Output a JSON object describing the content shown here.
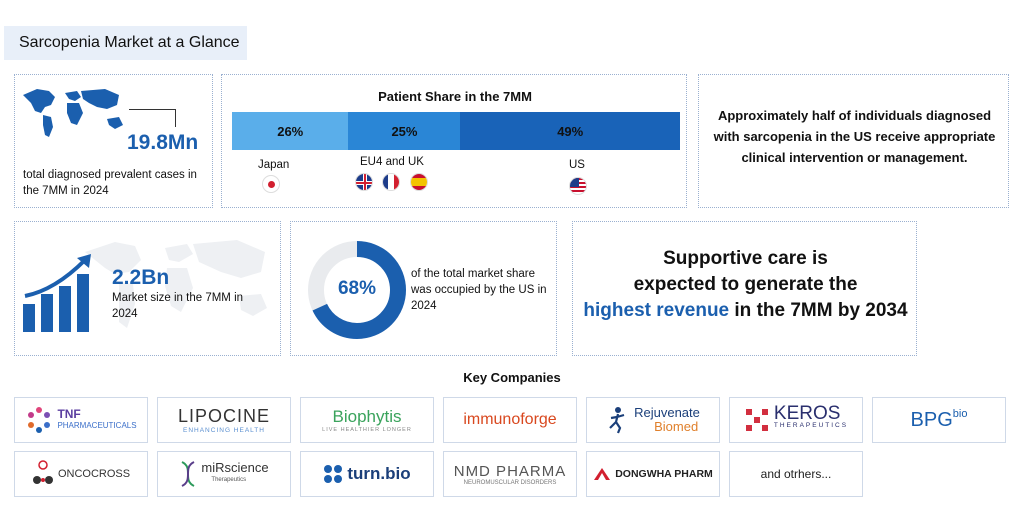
{
  "page_title": "Sarcopenia Market at a Glance",
  "prevalence": {
    "value": "19.8Mn",
    "caption": "total diagnosed prevalent cases in the 7MM in 2024"
  },
  "patient_share": {
    "title": "Patient Share in the 7MM",
    "segments": [
      {
        "label": "26%",
        "value": 26,
        "color": "#5aaeea"
      },
      {
        "label": "25%",
        "value": 25,
        "color": "#2a86d6"
      },
      {
        "label": "49%",
        "value": 49,
        "color": "#1963b8"
      }
    ],
    "regions": [
      {
        "name": "Japan"
      },
      {
        "name": "EU4 and UK"
      },
      {
        "name": "US"
      }
    ]
  },
  "us_note": "Approximately half of individuals diagnosed with sarcopenia in the US receive appropriate clinical intervention or management.",
  "market_size": {
    "value": "2.2Bn",
    "caption": "Market size in the 7MM in 2024"
  },
  "us_share": {
    "value": "68%",
    "fraction": 0.68,
    "caption": "of the total market share was occupied by the US in 2024"
  },
  "revenue": {
    "line1": "Supportive care is",
    "line2": "expected to generate the",
    "highlight": "highest revenue",
    "line3_rest": " in the 7MM by 2034"
  },
  "key_companies": {
    "title": "Key Companies",
    "row1": [
      {
        "name": "TNF",
        "sub": "PHARMACEUTICALS"
      },
      {
        "name": "LIPOCINE",
        "sub": "ENHANCING HEALTH"
      },
      {
        "name": "Biophytis",
        "sub": "LIVE HEALTHIER LONGER"
      },
      {
        "name": "immunoforge",
        "sub": ""
      },
      {
        "name": "Rejuvenate",
        "sub": "Biomed"
      },
      {
        "name": "KEROS",
        "sub": "THERAPEUTICS"
      },
      {
        "name": "BPG",
        "sub": "bio"
      }
    ],
    "row2": [
      {
        "name": "ONCOCROSS",
        "sub": ""
      },
      {
        "name": "miRscience",
        "sub": "Therapeutics"
      },
      {
        "name": "turn.bio",
        "sub": ""
      },
      {
        "name": "NMD PHARMA",
        "sub": "NEUROMUSCULAR DISORDERS"
      },
      {
        "name": "DONGWHA PHARM",
        "sub": ""
      },
      {
        "name": "and otrhers...",
        "sub": ""
      }
    ]
  },
  "colors": {
    "accent": "#1b5fae",
    "light_band": "#e8eff9",
    "card_border": "#9ab0d0"
  }
}
